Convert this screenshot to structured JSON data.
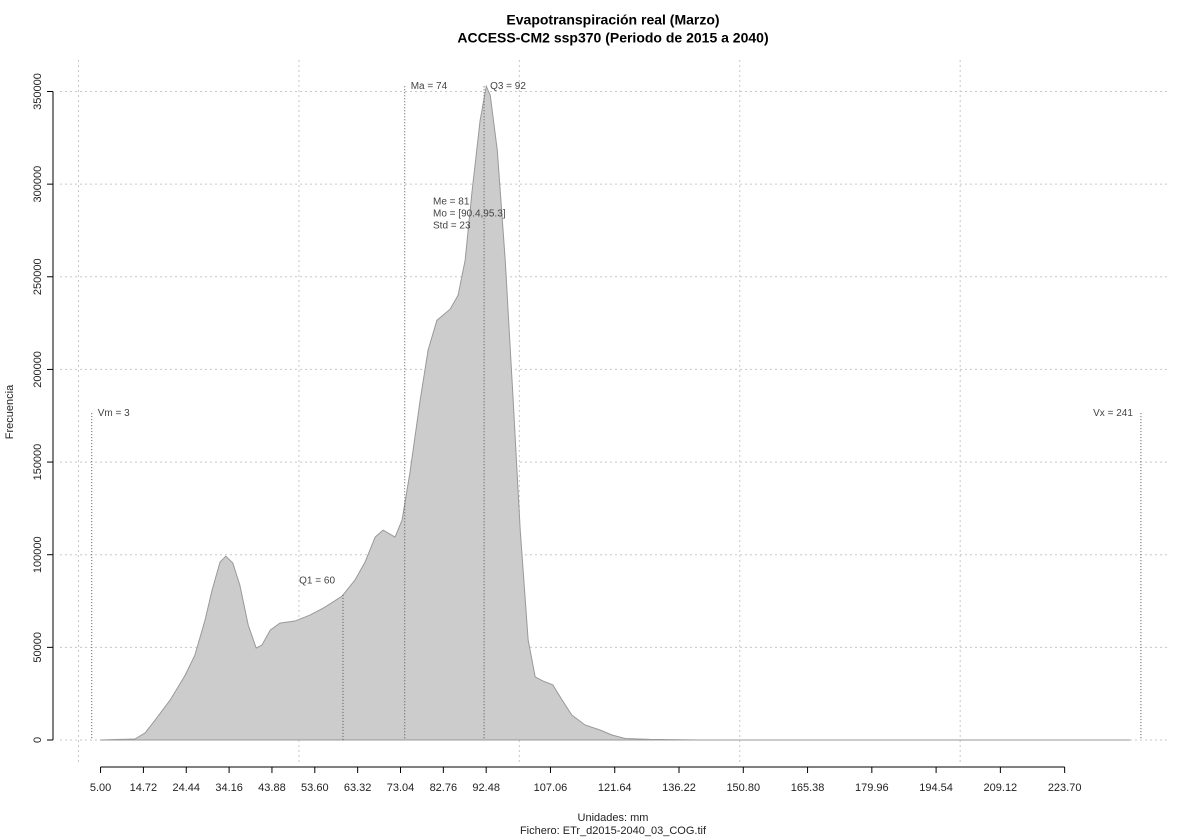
{
  "chart_data": {
    "type": "area",
    "title": "Evapotranspiración real (Marzo)",
    "subtitle": "ACCESS-CM2 ssp370 (Periodo de 2015 a 2040)",
    "x_label": "Unidades: mm",
    "caption": "Fichero: ETr_d2015-2040_03_COG.tif",
    "y_label": "Frecuencia",
    "color": "#cccccc",
    "line_color": "#999999",
    "x": [
      4.9,
      9.4,
      12.8,
      15.1,
      17.4,
      20.8,
      24.2,
      26.4,
      28.7,
      30.3,
      32.1,
      33.4,
      35.0,
      36.6,
      38.5,
      40.3,
      41.6,
      43.5,
      45.7,
      49.1,
      52.5,
      55.9,
      59.8,
      62.7,
      65.0,
      67.3,
      69.1,
      71.8,
      73.4,
      75.2,
      77.5,
      79.3,
      81.3,
      84.3,
      86.1,
      87.7,
      89.3,
      91.1,
      92.5,
      93.4,
      95.0,
      96.8,
      98.6,
      100.2,
      102.0,
      103.6,
      105.4,
      107.6,
      109.7,
      111.9,
      114.9,
      118.3,
      121.0,
      124.0,
      129.6,
      141.0,
      238.6
    ],
    "values": [
      0,
      300,
      500,
      3800,
      10800,
      21600,
      35000,
      45800,
      64700,
      80900,
      96000,
      99200,
      95500,
      83600,
      62000,
      49600,
      51200,
      59300,
      63100,
      64200,
      67400,
      71700,
      77700,
      86300,
      96000,
      109500,
      113300,
      109500,
      118700,
      144600,
      183400,
      210400,
      226500,
      232500,
      240000,
      258900,
      296700,
      334400,
      352800,
      348000,
      318200,
      258900,
      183400,
      113300,
      53900,
      34000,
      31800,
      29700,
      21600,
      13500,
      8100,
      5400,
      2700,
      800,
      300,
      0,
      0
    ],
    "xlim": [
      -4.2,
      247.6
    ],
    "ylim": [
      -13500,
      367000
    ],
    "xticks": [
      {
        "value": 5,
        "label": "5.00"
      },
      {
        "value": 14.72,
        "label": "14.72"
      },
      {
        "value": 24.44,
        "label": "24.44"
      },
      {
        "value": 34.16,
        "label": "34.16"
      },
      {
        "value": 43.88,
        "label": "43.88"
      },
      {
        "value": 53.6,
        "label": "53.60"
      },
      {
        "value": 63.32,
        "label": "63.32"
      },
      {
        "value": 73.04,
        "label": "73.04"
      },
      {
        "value": 82.76,
        "label": "82.76"
      },
      {
        "value": 92.48,
        "label": "92.48"
      },
      {
        "value": 107.06,
        "label": "107.06"
      },
      {
        "value": 121.64,
        "label": "121.64"
      },
      {
        "value": 136.22,
        "label": "136.22"
      },
      {
        "value": 150.8,
        "label": "150.80"
      },
      {
        "value": 165.38,
        "label": "165.38"
      },
      {
        "value": 179.96,
        "label": "179.96"
      },
      {
        "value": 194.54,
        "label": "194.54"
      },
      {
        "value": 209.12,
        "label": "209.12"
      },
      {
        "value": 223.7,
        "label": "223.70"
      }
    ],
    "yticks": [
      0,
      50000,
      100000,
      150000,
      200000,
      250000,
      300000,
      350000
    ],
    "xgrid": [
      0,
      50,
      100,
      150,
      200
    ],
    "grid": true,
    "reference_lines": [
      {
        "label": "Vm = 3",
        "value": 3
      },
      {
        "label": "Q1 = 60",
        "value": 60
      },
      {
        "label": "Ma = 74",
        "value": 74
      },
      {
        "label": "Q3 = 92",
        "value": 92
      },
      {
        "label": "Vx = 241",
        "value": 241
      }
    ],
    "stats": [
      "Me = 81",
      "Mo = [90.4,95.3]",
      "Std = 23"
    ]
  }
}
